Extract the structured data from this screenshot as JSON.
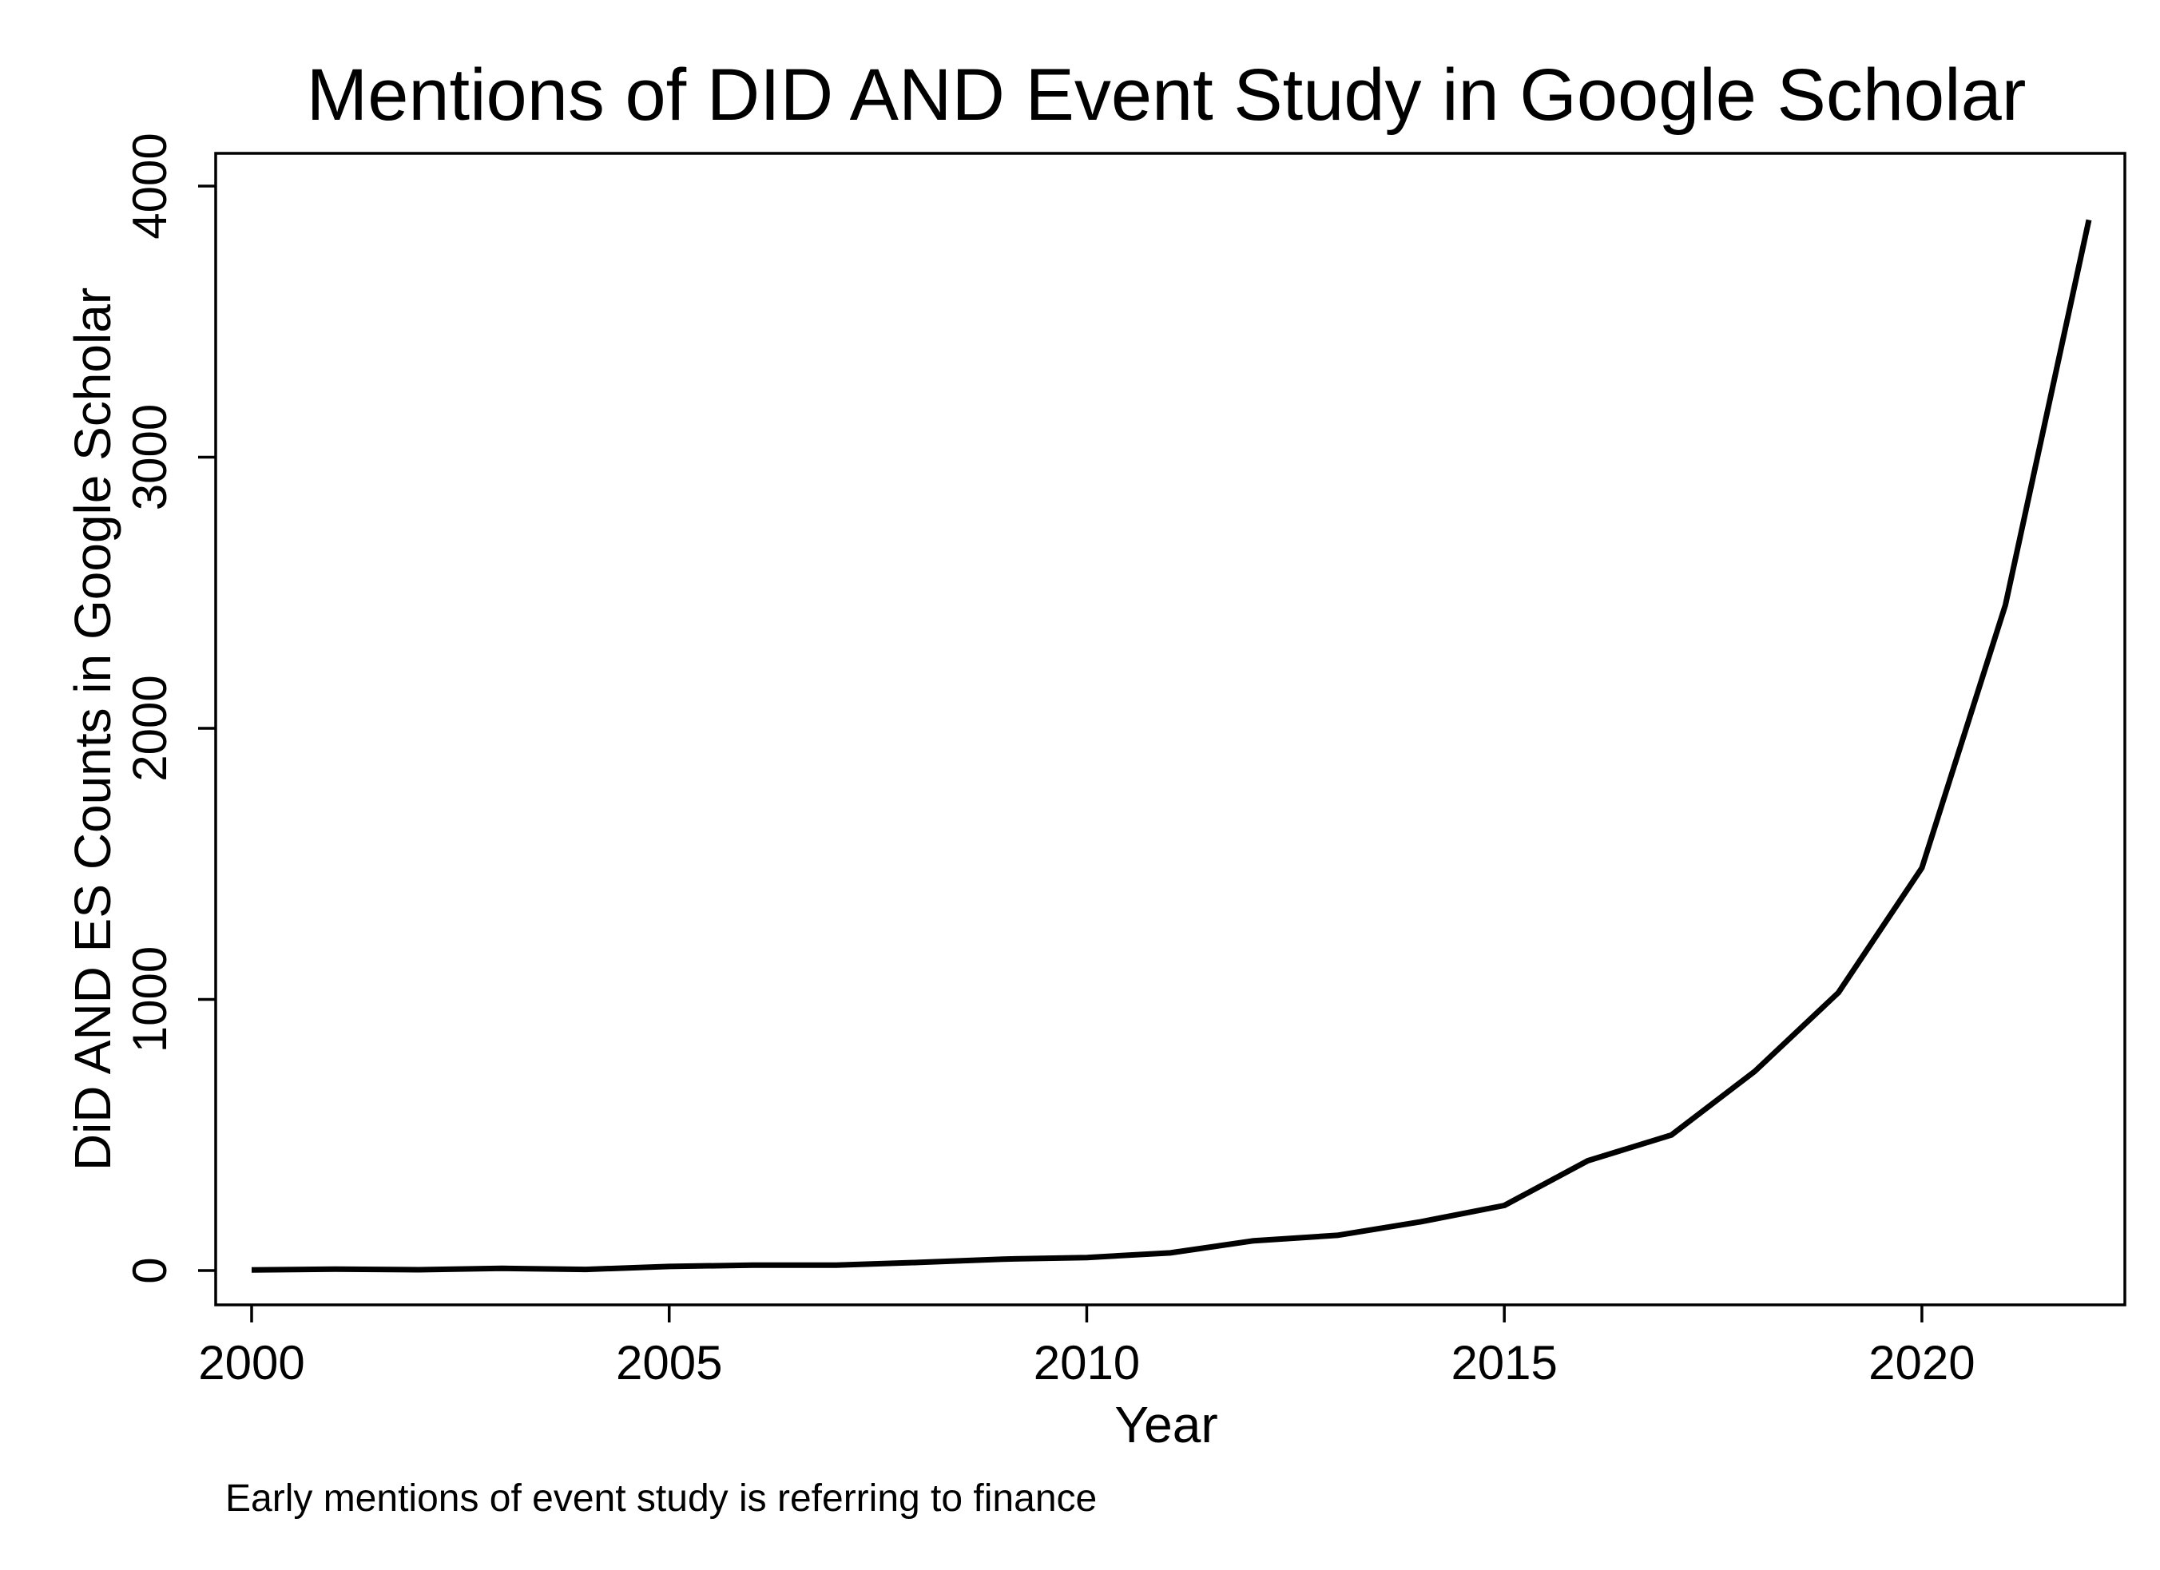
{
  "chart_data": {
    "type": "line",
    "title": "Mentions of DID AND Event Study in Google Scholar",
    "xlabel": "Year",
    "ylabel": "DiD AND ES Counts in Google Scholar",
    "note": "Early mentions of event study is referring to finance",
    "xlim": [
      2000,
      2022
    ],
    "ylim": [
      0,
      4000
    ],
    "x_ticks": [
      2000,
      2005,
      2010,
      2015,
      2020
    ],
    "y_ticks": [
      0,
      1000,
      2000,
      3000,
      4000
    ],
    "grid": false,
    "legend": "none",
    "line_color": "#000000",
    "series": [
      {
        "x": [
          2000,
          2001,
          2002,
          2003,
          2004,
          2005,
          2006,
          2007,
          2008,
          2009,
          2010,
          2011,
          2012,
          2013,
          2014,
          2015,
          2016,
          2017,
          2018,
          2019,
          2020,
          2021,
          2022
        ],
        "values": [
          2,
          5,
          3,
          8,
          4,
          15,
          20,
          20,
          30,
          42,
          48,
          65,
          110,
          130,
          180,
          240,
          405,
          500,
          735,
          1025,
          1485,
          2455,
          3875
        ]
      }
    ]
  }
}
